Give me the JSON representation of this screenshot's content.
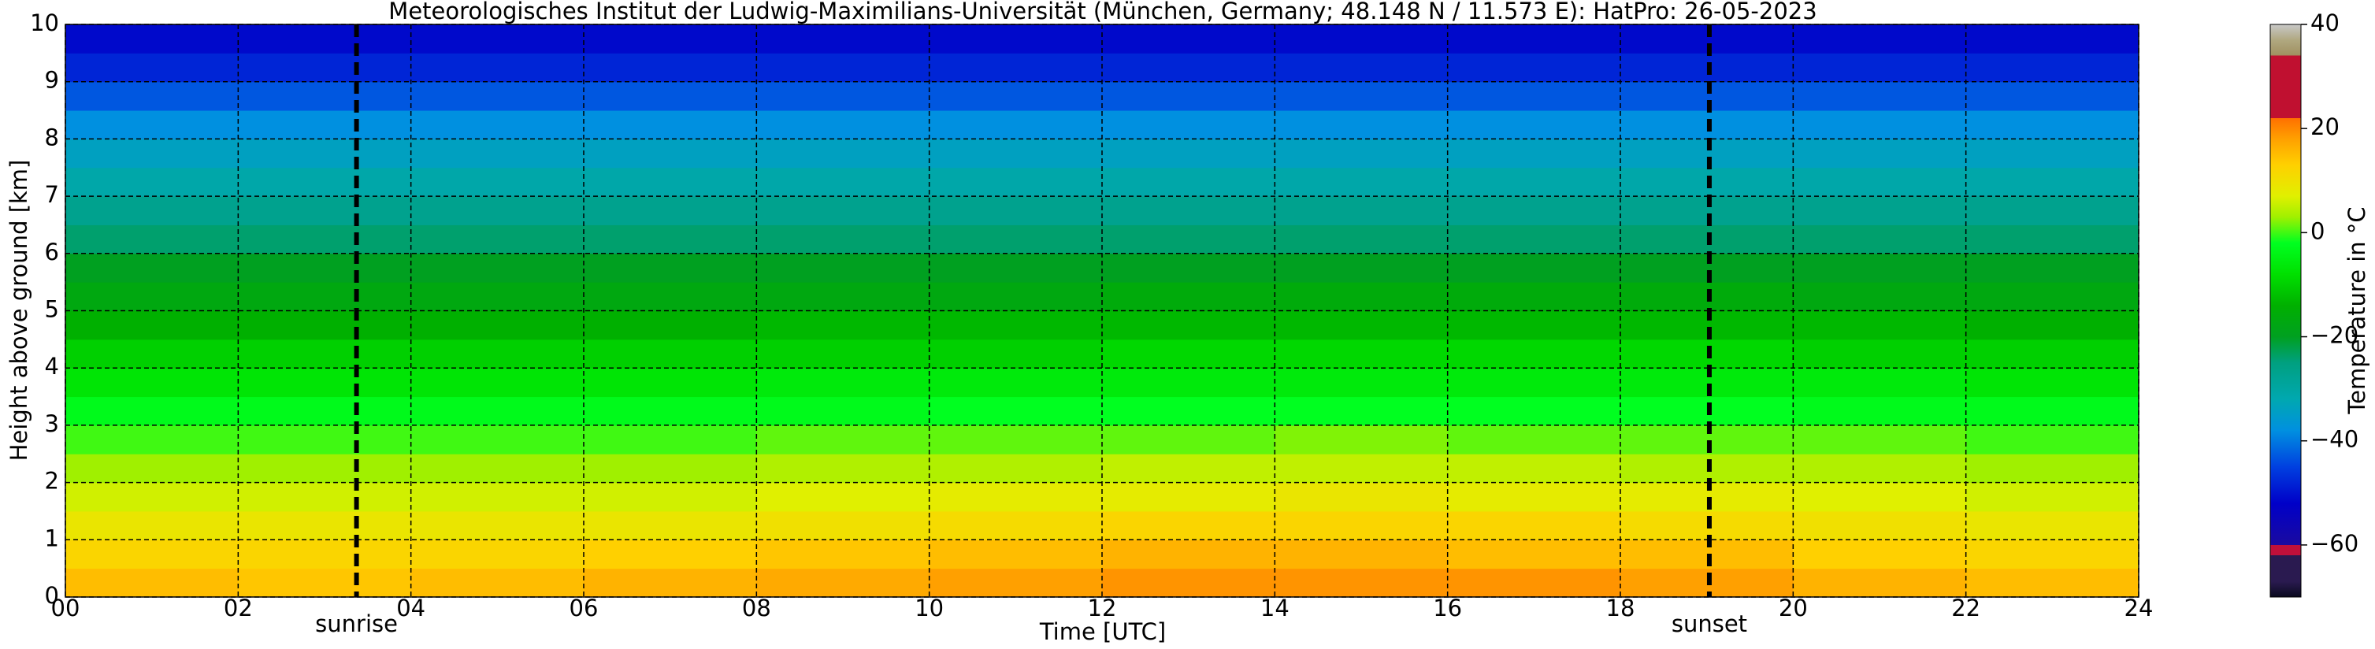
{
  "chart_data": {
    "type": "heatmap",
    "title": "Meteorologisches Institut der Ludwig-Maximilians-Universität (München, Germany; 48.148 N / 11.573 E):    HatPro: 26-05-2023",
    "x_label": "Time [UTC]",
    "y_label": "Height above ground [km]",
    "colorbar_label": "Temperature in °C",
    "xlim": [
      0,
      24
    ],
    "ylim": [
      0,
      10
    ],
    "xticks": [
      {
        "value": 0,
        "label": "00"
      },
      {
        "value": 2,
        "label": "02"
      },
      {
        "value": 4,
        "label": "04"
      },
      {
        "value": 6,
        "label": "06"
      },
      {
        "value": 8,
        "label": "08"
      },
      10,
      12,
      14,
      16,
      18,
      20,
      22,
      24
    ],
    "yticks": [
      0,
      1,
      2,
      3,
      4,
      5,
      6,
      7,
      8,
      9,
      10
    ],
    "grid": true,
    "x_edges": [
      0,
      2,
      4,
      6,
      8,
      10,
      12,
      14,
      16,
      18,
      20,
      22,
      24
    ],
    "y_edges": [
      0,
      0.5,
      1,
      1.5,
      2,
      2.5,
      3,
      3.5,
      4,
      4.5,
      5,
      5.5,
      6,
      6.5,
      7,
      7.5,
      8,
      8.5,
      9,
      9.5,
      10
    ],
    "z": [
      [
        15,
        14,
        15,
        16,
        17,
        18,
        19,
        19,
        19,
        18,
        16,
        15
      ],
      [
        12,
        12,
        12,
        13,
        14,
        15,
        16,
        16,
        15,
        15,
        13,
        12
      ],
      [
        9,
        9,
        9,
        9,
        10,
        11,
        12,
        12,
        12,
        11,
        10,
        9
      ],
      [
        6,
        6,
        6,
        6,
        7,
        8,
        8,
        9,
        8,
        8,
        7,
        6
      ],
      [
        3,
        3,
        3,
        3,
        4,
        4,
        5,
        5,
        5,
        4,
        4,
        3
      ],
      [
        0,
        0,
        0,
        0,
        1,
        1,
        1,
        2,
        1,
        1,
        1,
        0
      ],
      [
        -3,
        -3,
        -3,
        -3,
        -3,
        -2,
        -2,
        -2,
        -2,
        -2,
        -3,
        -3
      ],
      [
        -7,
        -7,
        -7,
        -7,
        -6,
        -6,
        -6,
        -6,
        -6,
        -6,
        -6,
        -7
      ],
      [
        -10,
        -10,
        -10,
        -10,
        -10,
        -10,
        -9,
        -9,
        -9,
        -9,
        -10,
        -10
      ],
      [
        -14,
        -14,
        -14,
        -14,
        -13,
        -13,
        -13,
        -13,
        -13,
        -13,
        -13,
        -14
      ],
      [
        -17,
        -17,
        -17,
        -17,
        -17,
        -17,
        -16,
        -16,
        -16,
        -16,
        -17,
        -17
      ],
      [
        -20,
        -20,
        -20,
        -20,
        -20,
        -20,
        -20,
        -20,
        -20,
        -20,
        -20,
        -20
      ],
      [
        -24,
        -24,
        -24,
        -24,
        -24,
        -24,
        -24,
        -24,
        -24,
        -24,
        -24,
        -24
      ],
      [
        -27,
        -27,
        -27,
        -27,
        -27,
        -27,
        -27,
        -27,
        -27,
        -27,
        -27,
        -27
      ],
      [
        -31,
        -31,
        -31,
        -31,
        -31,
        -31,
        -31,
        -31,
        -31,
        -31,
        -31,
        -31
      ],
      [
        -34,
        -34,
        -34,
        -34,
        -34,
        -34,
        -34,
        -34,
        -34,
        -34,
        -34,
        -34
      ],
      [
        -38,
        -38,
        -38,
        -38,
        -38,
        -38,
        -38,
        -38,
        -38,
        -38,
        -38,
        -38
      ],
      [
        -43,
        -43,
        -43,
        -43,
        -43,
        -43,
        -43,
        -43,
        -43,
        -43,
        -43,
        -43
      ],
      [
        -48,
        -48,
        -48,
        -48,
        -48,
        -48,
        -48,
        -48,
        -48,
        -48,
        -48,
        -48
      ],
      [
        -51,
        -51,
        -51,
        -51,
        -51,
        -51,
        -51,
        -51,
        -51,
        -51,
        -51,
        -51
      ]
    ],
    "clim": [
      -70,
      40
    ],
    "cticks": [
      {
        "value": -60,
        "label": "−60"
      },
      {
        "value": -40,
        "label": "−40"
      },
      {
        "value": -20,
        "label": "−20"
      },
      0,
      20,
      40
    ],
    "colormap": [
      {
        "value": -70,
        "color": "#0a0a1e"
      },
      {
        "value": -67,
        "color": "#2a1a50"
      },
      {
        "value": -62,
        "color": "#2a1a50"
      },
      {
        "value": -62,
        "color": "#c0103a"
      },
      {
        "value": -60,
        "color": "#c0103a"
      },
      {
        "value": -60,
        "color": "#1a0aa0"
      },
      {
        "value": -52,
        "color": "#0000c8"
      },
      {
        "value": -45,
        "color": "#0040e0"
      },
      {
        "value": -38,
        "color": "#0090e0"
      },
      {
        "value": -32,
        "color": "#00a8b0"
      },
      {
        "value": -25,
        "color": "#00a080"
      },
      {
        "value": -20,
        "color": "#00a020"
      },
      {
        "value": -14,
        "color": "#00b000"
      },
      {
        "value": -8,
        "color": "#00e000"
      },
      {
        "value": -2,
        "color": "#00ff20"
      },
      {
        "value": 3,
        "color": "#a0f000"
      },
      {
        "value": 7,
        "color": "#e0f000"
      },
      {
        "value": 13,
        "color": "#ffd000"
      },
      {
        "value": 18,
        "color": "#ffa000"
      },
      {
        "value": 22,
        "color": "#ff7000"
      },
      {
        "value": 22,
        "color": "#c01030"
      },
      {
        "value": 34,
        "color": "#c01030"
      },
      {
        "value": 34,
        "color": "#a09060"
      },
      {
        "value": 37,
        "color": "#b0a880"
      },
      {
        "value": 40,
        "color": "#c8c8c8"
      }
    ],
    "annotations": [
      {
        "x": 3.37,
        "label": "sunrise"
      },
      {
        "x": 19.03,
        "label": "sunset"
      }
    ]
  }
}
